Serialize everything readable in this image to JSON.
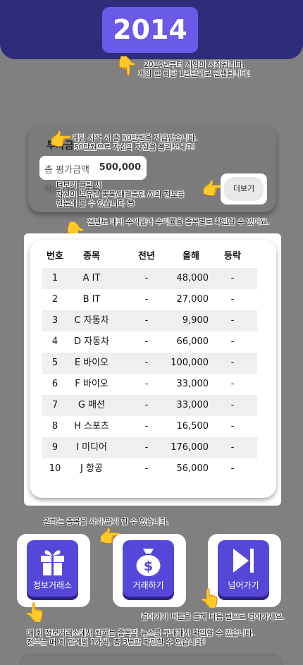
{
  "header": {
    "year": "2014"
  },
  "hints": {
    "year_line1": "2014년부터 게임이 시작됩니다.",
    "year_line2": "게임 한 회당 1년단위로 진행됩니다!",
    "money_line1": "게임 시작 시 총 50만원을 지급받습니다.",
    "money_line2": "50만원으로 자신의 자산을 불려보세요!",
    "more_line1": "더보기 클릭 시",
    "more_line2": "자신이  보유한 종목/대결중인 AI의 정보를",
    "more_line3": "한눈에 볼 수 있습니다 😎",
    "table_line": "전년도 대비 수익금과 수익률을 종목별로 확인할 수 있어요.",
    "trade_line": "원하는 종목을 사기/팔기 할 수 있습니다.",
    "skip_line": "넘어가기 버튼을 통해 다음 턴으로 넘어가세요.",
    "info_line1": "매 회 정보거래소에서 원하는 종목의 뉴스를 구매해서 확인할 수 있습니다.",
    "info_line2": "정보는 매 회 단계별 1개씩, 총 3번만 확인할 수 있습니다!"
  },
  "investment": {
    "title": "투자금",
    "eval_label": "총 평가금액",
    "eval_value": "500,000",
    "rate_text": "작년 대비 (0%)",
    "more_button": "더보기"
  },
  "stock_table": {
    "headers": {
      "no": "번호",
      "name": "종목",
      "prev": "전년",
      "cur": "올해",
      "chg": "등락"
    },
    "rows": [
      {
        "no": "1",
        "name": "A IT",
        "prev": "-",
        "cur": "48,000",
        "chg": "-"
      },
      {
        "no": "2",
        "name": "B IT",
        "prev": "-",
        "cur": "27,000",
        "chg": "-"
      },
      {
        "no": "3",
        "name": "C 자동차",
        "prev": "-",
        "cur": "9,900",
        "chg": "-"
      },
      {
        "no": "4",
        "name": "D 자동차",
        "prev": "-",
        "cur": "66,000",
        "chg": "-"
      },
      {
        "no": "5",
        "name": "E 바이오",
        "prev": "-",
        "cur": "100,000",
        "chg": "-"
      },
      {
        "no": "6",
        "name": "F 바이오",
        "prev": "-",
        "cur": "33,000",
        "chg": "-"
      },
      {
        "no": "7",
        "name": "G 패션",
        "prev": "-",
        "cur": "33,000",
        "chg": "-"
      },
      {
        "no": "8",
        "name": "H 스포츠",
        "prev": "-",
        "cur": "16,500",
        "chg": "-"
      },
      {
        "no": "9",
        "name": "I 미디어",
        "prev": "-",
        "cur": "176,000",
        "chg": "-"
      },
      {
        "no": "10",
        "name": "J 항공",
        "prev": "-",
        "cur": "56,000",
        "chg": "-"
      }
    ]
  },
  "actions": {
    "info_exchange": {
      "label": "정보거래소",
      "icon": "gift-icon"
    },
    "trade": {
      "label": "거래하기",
      "icon": "money-bag-icon"
    },
    "skip": {
      "label": "넘어가기",
      "icon": "skip-next-icon"
    }
  },
  "colors": {
    "background": "#808080",
    "header": "#2d2d7a",
    "accent": "#6a5ae8",
    "button": "#5548d9"
  },
  "pointer_icon": "pointing-hand-icon"
}
